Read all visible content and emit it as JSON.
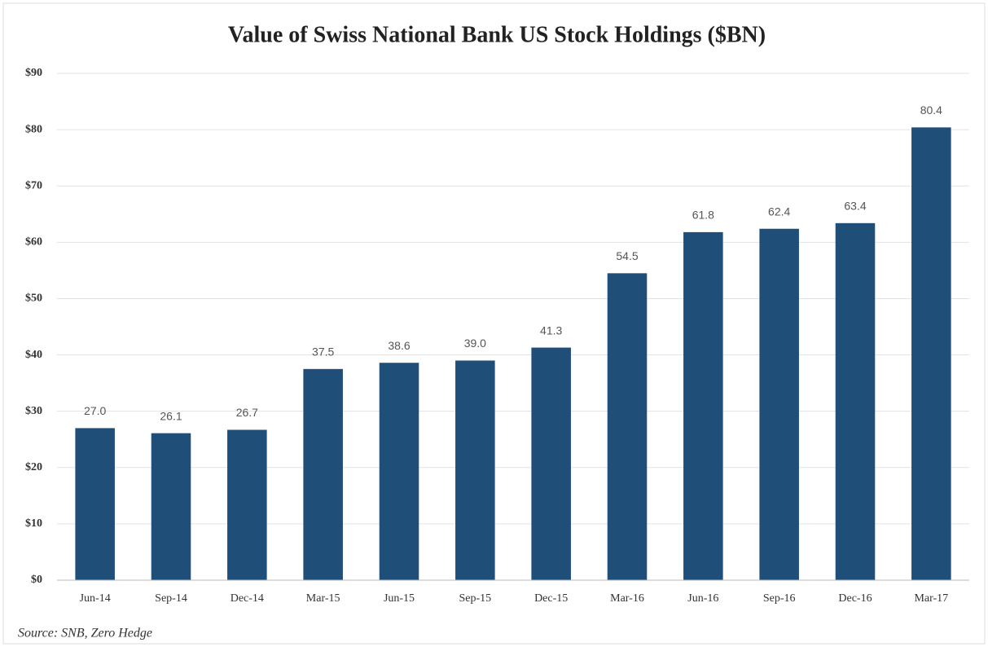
{
  "chart_data": {
    "type": "bar",
    "title": "Value of Swiss National Bank US Stock Holdings ($BN)",
    "categories": [
      "Jun-14",
      "Sep-14",
      "Dec-14",
      "Mar-15",
      "Jun-15",
      "Sep-15",
      "Dec-15",
      "Mar-16",
      "Jun-16",
      "Sep-16",
      "Dec-16",
      "Mar-17"
    ],
    "values": [
      27,
      26.1,
      26.7,
      37.5,
      38.6,
      39,
      41.3,
      54.5,
      61.8,
      62.4,
      63.4,
      80.4
    ],
    "value_labels": [
      "27.0",
      "26.1",
      "26.7",
      "37.5",
      "38.6",
      "39.0",
      "41.3",
      "54.5",
      "61.8",
      "62.4",
      "63.4",
      "80.4"
    ],
    "color": "#1f4e79",
    "ylim": [
      0,
      90
    ],
    "yticks": [
      {
        "value": 0,
        "label": "$0"
      },
      {
        "value": 10,
        "label": "$10"
      },
      {
        "value": 20,
        "label": "$20"
      },
      {
        "value": 30,
        "label": "$30"
      },
      {
        "value": 40,
        "label": "$40"
      },
      {
        "value": 50,
        "label": "$50"
      },
      {
        "value": 60,
        "label": "$60"
      },
      {
        "value": 70,
        "label": "$70"
      },
      {
        "value": 80,
        "label": "$80"
      },
      {
        "value": 90,
        "label": "$90"
      }
    ],
    "grid": true,
    "source": "Source: SNB, Zero Hedge"
  }
}
